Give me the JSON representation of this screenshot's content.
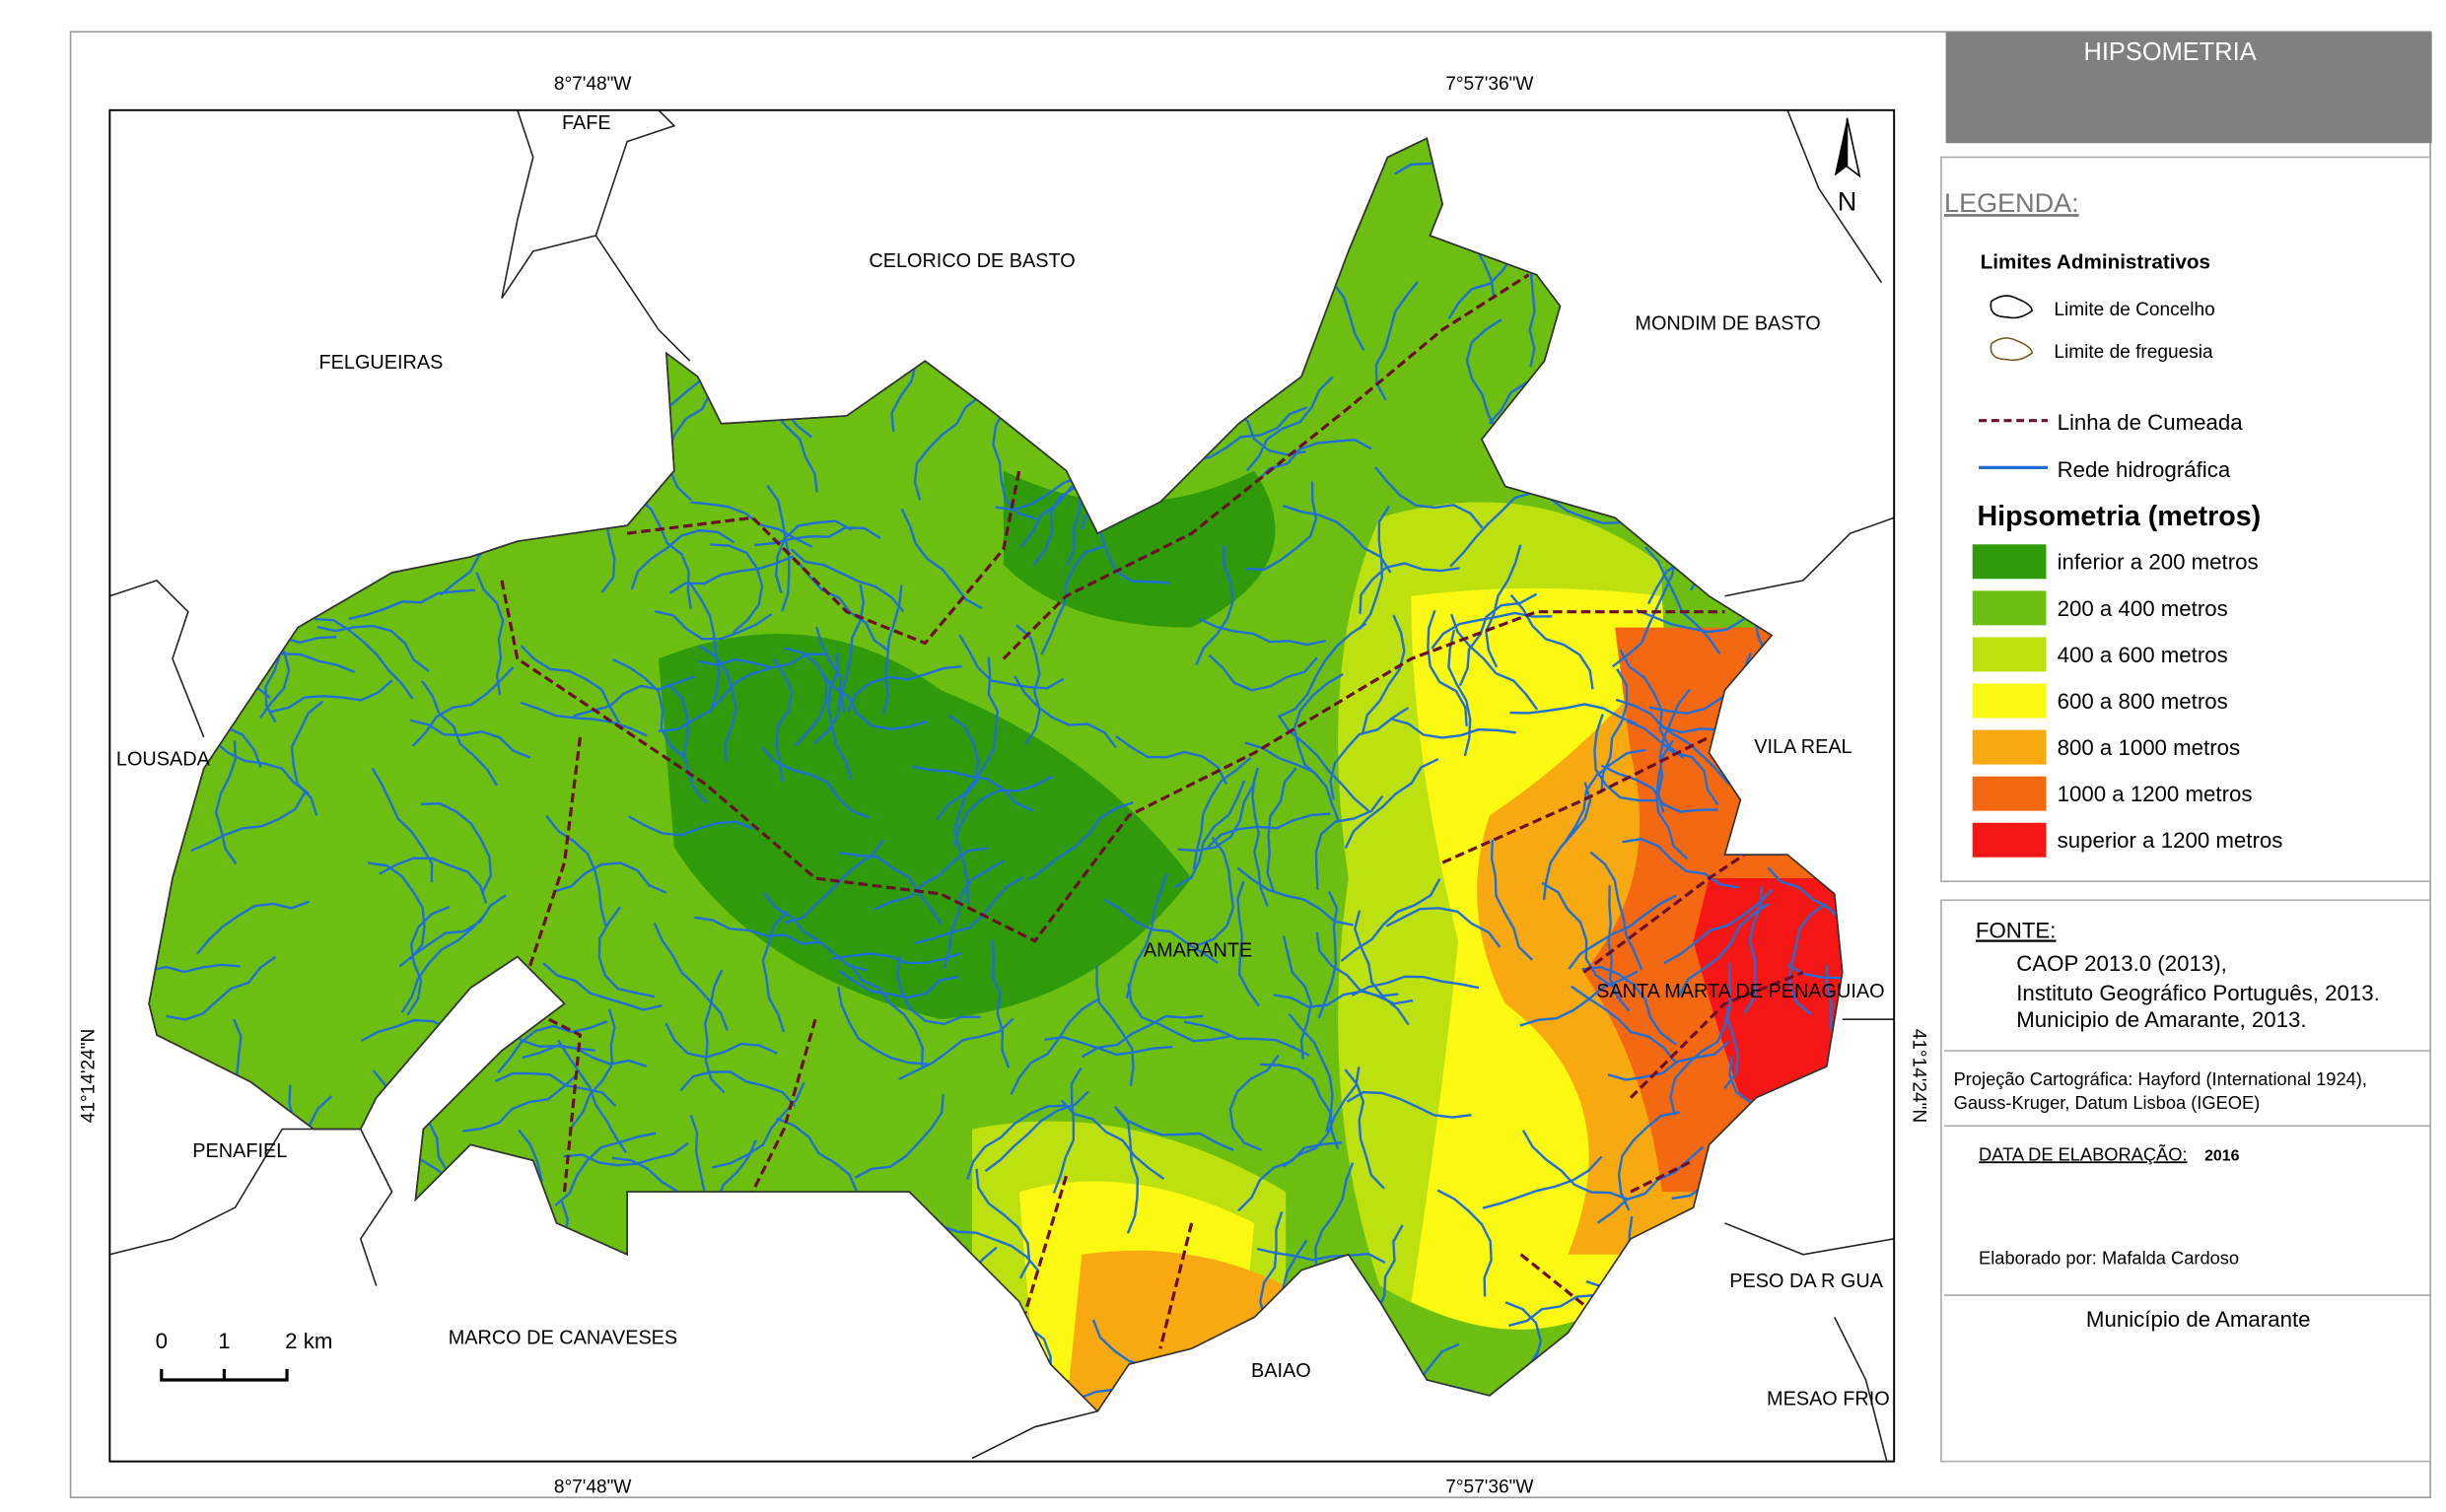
{
  "header": {
    "title": "HIPSOMETRIA"
  },
  "coordinates": {
    "top": [
      "8°7'48\"W",
      "7°57'36\"W"
    ],
    "bottom": [
      "8°7'48\"W",
      "7°57'36\"W"
    ],
    "left": "41°14'24\"N",
    "right": "41°14'24\"N"
  },
  "north": "N",
  "places": [
    "FAFE",
    "CELORICO DE BASTO",
    "FELGUEIRAS",
    "MONDIM DE BASTO",
    "LOUSADA",
    "VILA REAL",
    "AMARANTE",
    "SANTA MARTA DE PENAGUIAO",
    "PENAFIEL",
    "MARCO DE CANAVESES",
    "BAIAO",
    "PESO DA R  GUA",
    "MESAO FRIO"
  ],
  "scale": [
    "0",
    "1",
    "2 km"
  ],
  "legend": {
    "title": "LEGENDA:",
    "admin_title": "Limites Administrativos",
    "admin": [
      "Limite de Concelho",
      "Limite de freguesia"
    ],
    "lines": [
      {
        "label": "Linha de Cumeada",
        "color": "#6b0f2a"
      },
      {
        "label": "Rede hidrográfica",
        "color": "#1f6fd6"
      }
    ],
    "hyps_title": "Hipsometria (metros)",
    "classes": [
      {
        "label": "inferior a 200 metros",
        "color": "#2f9a0a"
      },
      {
        "label": "200 a 400 metros",
        "color": "#6cbf10"
      },
      {
        "label": "400 a 600 metros",
        "color": "#bde10e"
      },
      {
        "label": "600 a 800 metros",
        "color": "#fbf812"
      },
      {
        "label": "800 a 1000 metros",
        "color": "#f7a90f"
      },
      {
        "label": "1000 a 1200 metros",
        "color": "#f56812"
      },
      {
        "label": "superior a 1200 metros",
        "color": "#f71616"
      }
    ]
  },
  "source": {
    "title": "FONTE:",
    "lines": [
      "CAOP 2013.0 (2013),",
      "Instituto Geográfico Português, 2013.",
      "Municipio de Amarante, 2013."
    ]
  },
  "projection": [
    "Projeção Cartográfica: Hayford (International 1924),",
    "Gauss-Kruger, Datum Lisboa (IGEOE)"
  ],
  "date": {
    "label": "DATA DE ELABORAÇÃO:",
    "value": "2016"
  },
  "author": "Elaborado por: Mafalda Cardoso",
  "footer": "Município de Amarante"
}
